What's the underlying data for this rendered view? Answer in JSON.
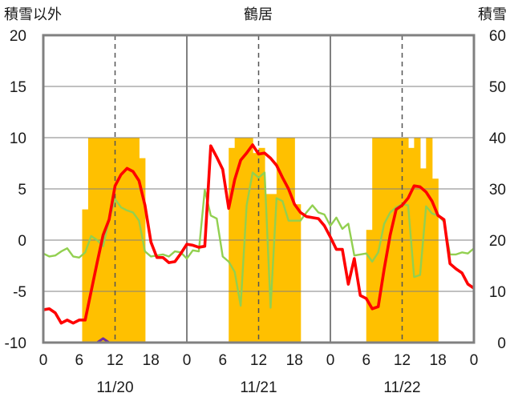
{
  "chart_data": {
    "type": "line",
    "title": "鶴居",
    "left_axis": {
      "label": "積雪以外",
      "ylim": [
        -10,
        20
      ],
      "ticks": [
        "20",
        "15",
        "10",
        "5",
        "0",
        "-5",
        "-10"
      ]
    },
    "right_axis": {
      "label": "積雪",
      "ylim": [
        0,
        60
      ],
      "ticks": [
        "60",
        "50",
        "40",
        "30",
        "20",
        "10",
        "0"
      ]
    },
    "x_axis": {
      "range_hours": [
        0,
        72
      ],
      "ticks": [
        "0",
        "6",
        "12",
        "18",
        "0",
        "6",
        "12",
        "18",
        "0",
        "6",
        "12",
        "18",
        "0"
      ],
      "dates": [
        "11/20",
        "11/21",
        "11/22"
      ]
    },
    "grid": {
      "day_separators": true,
      "noon_dashed": true
    },
    "colors": {
      "plot_frame": "#808080",
      "temperature": "#ff0000",
      "temperature2": "#92d050",
      "snow_depth_bars": "#ffc000",
      "precip": "#7030a0"
    },
    "series": [
      {
        "axis": "left",
        "color": "#ff0000",
        "values": [
          -6.8,
          -6.7,
          -7.1,
          -8.1,
          -7.8,
          -8.1,
          -7.8,
          -7.8,
          -5.0,
          -2.2,
          0.5,
          2.0,
          5.3,
          6.4,
          7.0,
          6.7,
          5.8,
          3.4,
          -0.2,
          -1.7,
          -1.7,
          -2.2,
          -2.1,
          -1.3,
          -0.4,
          -0.5,
          -0.7,
          -0.6,
          9.2,
          8.1,
          6.9,
          3.1,
          5.9,
          7.8,
          8.5,
          9.3,
          8.4,
          8.5,
          8.0,
          7.3,
          6.1,
          5.0,
          3.5,
          2.7,
          2.3,
          2.2,
          2.1,
          1.4,
          0.3,
          -0.9,
          -0.9,
          -4.3,
          -1.8,
          -5.4,
          -5.7,
          -6.7,
          -6.5,
          -2.8,
          0.5,
          3.0,
          3.4,
          4.1,
          5.3,
          5.2,
          4.7,
          3.8,
          2.4,
          2.0,
          -2.3,
          -2.8,
          -3.2,
          -4.3,
          -4.7
        ]
      },
      {
        "axis": "left",
        "color": "#92d050",
        "values": [
          -1.3,
          -1.6,
          -1.5,
          -1.1,
          -0.8,
          -1.6,
          -1.7,
          -1.2,
          0.4,
          0.0,
          -0.6,
          2.0,
          4.0,
          3.2,
          2.9,
          2.7,
          1.9,
          -1.1,
          -1.6,
          -1.5,
          -1.4,
          -1.6,
          -1.1,
          -1.2,
          -1.8,
          -1.0,
          -1.1,
          4.9,
          2.4,
          2.1,
          -1.6,
          -2.1,
          -3.1,
          -6.4,
          3.4,
          6.6,
          6.1,
          6.6,
          -6.6,
          4.1,
          3.8,
          1.9,
          1.9,
          1.9,
          2.7,
          3.4,
          2.7,
          2.5,
          1.4,
          2.2,
          1.1,
          1.6,
          -1.5,
          -1.4,
          -1.3,
          -2.1,
          -1.2,
          1.6,
          2.7,
          3.2,
          3.5,
          3.4,
          -3.6,
          -3.4,
          3.3,
          2.6,
          2.4,
          1.8,
          -1.4,
          -1.4,
          -1.2,
          -1.3,
          -0.8
        ]
      },
      {
        "axis": "left",
        "color": "#7030a0",
        "values": [
          -10,
          -10,
          -10,
          -10,
          -10,
          -10,
          -10,
          -10,
          -10,
          -10,
          -9.6,
          -10,
          -10,
          -10,
          -10,
          -10,
          -10,
          -10,
          -10,
          -10,
          -10,
          -10,
          -10,
          -10,
          -10,
          -10,
          -10,
          -10,
          -10,
          -10,
          -10,
          -10,
          -10,
          -10,
          -10,
          -10,
          -10,
          -10,
          -10,
          -10,
          -10,
          -10,
          -10,
          -10,
          -10,
          -10,
          -10,
          -10,
          -10,
          -10,
          -10,
          -10,
          -10,
          -10,
          -10,
          -10,
          -10,
          -10,
          -10,
          -10,
          -10,
          -10,
          -10,
          -10,
          -10,
          -10,
          -10,
          -10,
          -10,
          -10,
          -10,
          -10,
          -10
        ]
      },
      {
        "axis": "right",
        "type": "bar",
        "color": "#ffc000",
        "bars": [
          {
            "start": 6.5,
            "end": 7.5,
            "value": 26
          },
          {
            "start": 7.5,
            "end": 16,
            "value": 40
          },
          {
            "start": 16,
            "end": 17,
            "value": 36
          },
          {
            "start": 31,
            "end": 32,
            "value": 38
          },
          {
            "start": 32,
            "end": 35,
            "value": 40
          },
          {
            "start": 35,
            "end": 36,
            "value": 37
          },
          {
            "start": 36,
            "end": 37,
            "value": 38
          },
          {
            "start": 37,
            "end": 39,
            "value": 29
          },
          {
            "start": 39,
            "end": 42,
            "value": 40
          },
          {
            "start": 42,
            "end": 43,
            "value": 27
          },
          {
            "start": 54,
            "end": 55,
            "value": 22
          },
          {
            "start": 55,
            "end": 61,
            "value": 40
          },
          {
            "start": 61,
            "end": 62,
            "value": 38
          },
          {
            "start": 62,
            "end": 63,
            "value": 40
          },
          {
            "start": 63,
            "end": 64,
            "value": 34
          },
          {
            "start": 64,
            "end": 65,
            "value": 40
          },
          {
            "start": 65,
            "end": 66,
            "value": 32
          }
        ]
      }
    ]
  }
}
